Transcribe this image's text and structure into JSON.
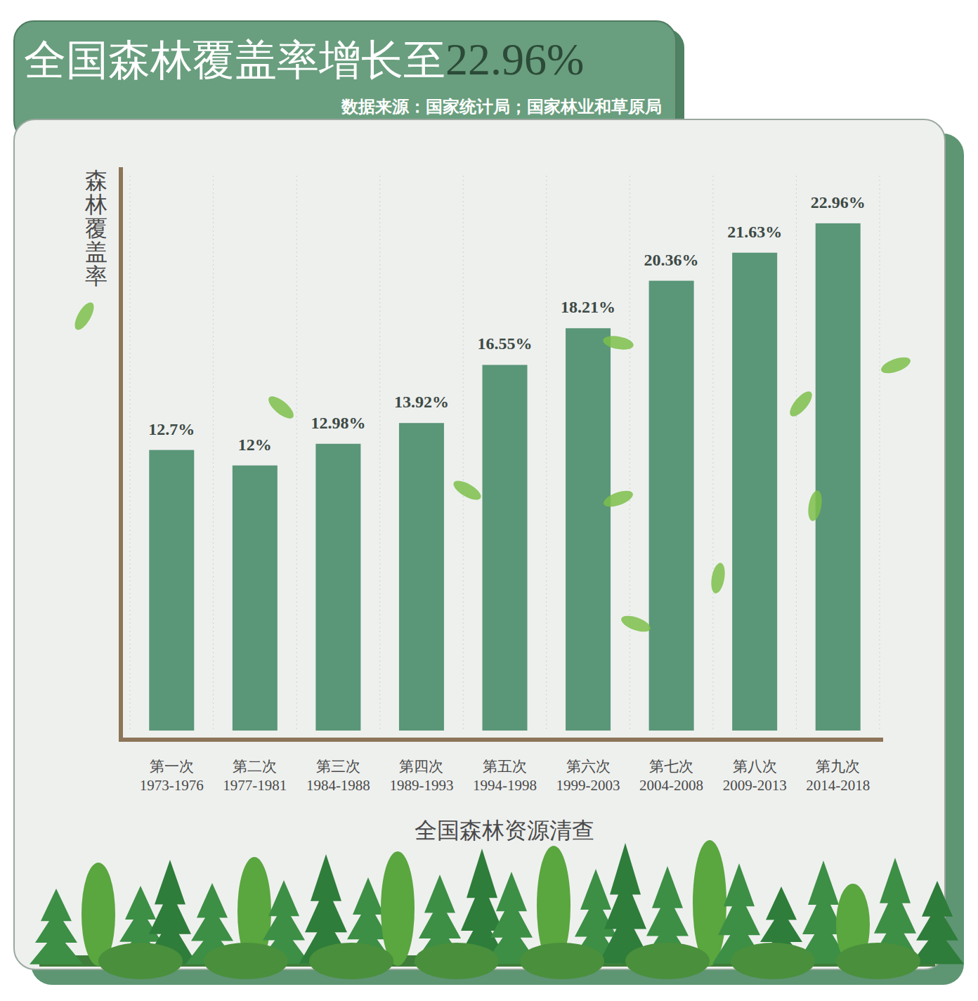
{
  "chart_data": {
    "type": "bar",
    "title": "全国森林覆盖率增长至22.96%",
    "subtitle": "数据来源：国家统计局；国家林业和草原局",
    "y_label": "森林覆盖率",
    "x_label": "全国森林资源清查",
    "categories": [
      "第一次\n1973-1976",
      "第二次\n1977-1981",
      "第三次\n1984-1988",
      "第四次\n1989-1993",
      "第五次\n1994-1998",
      "第六次\n1999-2003",
      "第七次\n2004-2008",
      "第八次\n2009-2013",
      "第九次\n2014-2018"
    ],
    "values": [
      12.7,
      12,
      12.98,
      13.92,
      16.55,
      18.21,
      20.36,
      21.63,
      22.96
    ],
    "value_labels": [
      "12.7%",
      "12%",
      "12.98%",
      "13.92%",
      "16.55%",
      "18.21%",
      "20.36%",
      "21.63%",
      "22.96%"
    ],
    "data_labels": true,
    "color": "#5a9678",
    "ylim": [
      0,
      25.5
    ],
    "yticks": [],
    "tick_labels": "x",
    "grid": true
  }
}
